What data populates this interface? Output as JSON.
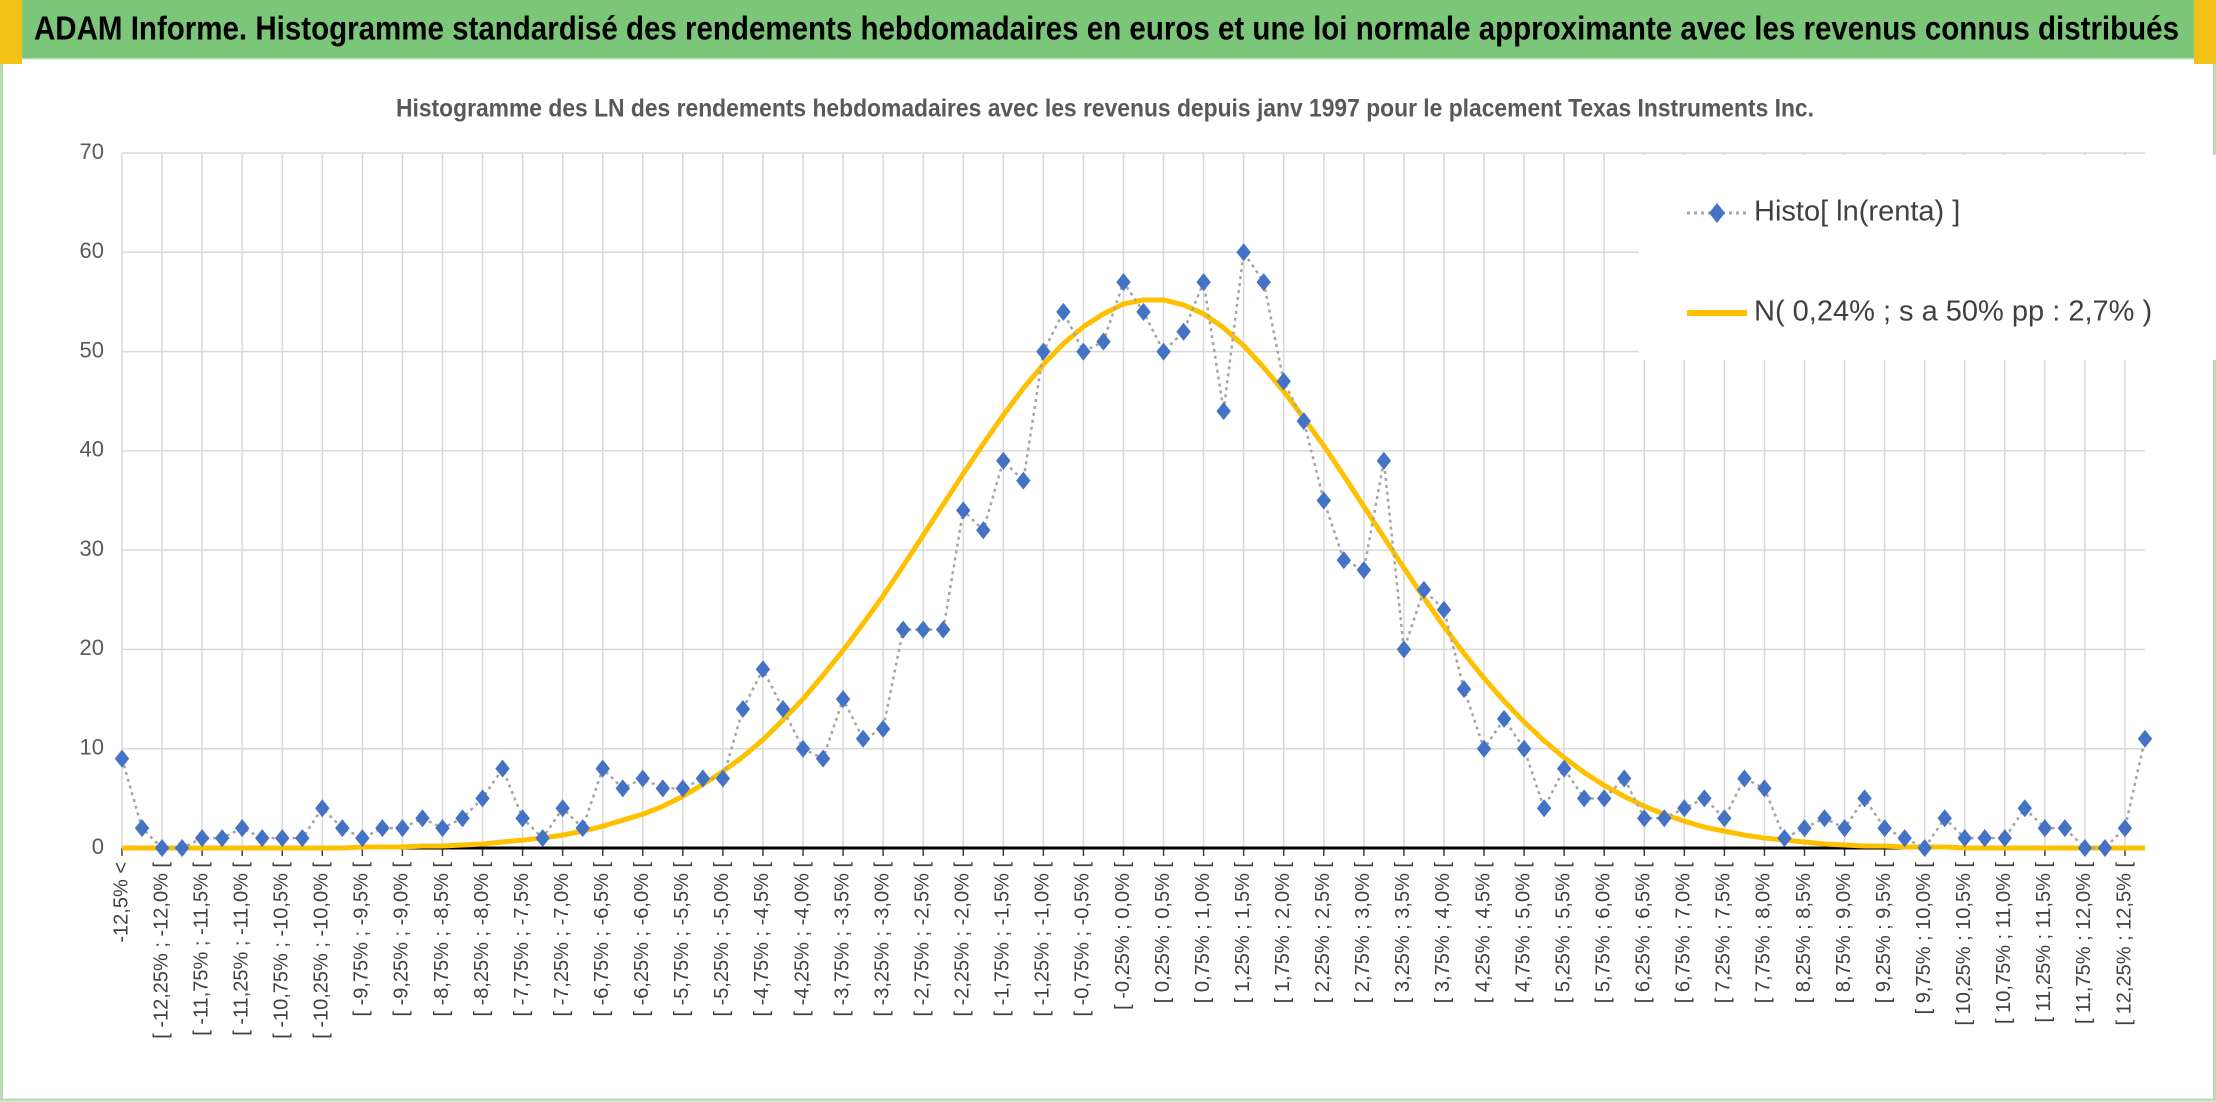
{
  "header": {
    "title": "ADAM Informe. Histogramme standardisé des rendements hebdomadaires en euros et une loi normale approximante avec les revenus connus distribués"
  },
  "chart_data": {
    "type": "line",
    "title": "Histogramme des LN des rendements hebdomadaires avec les revenus depuis janv 1997 pour le placement Texas Instruments Inc.",
    "categories": [
      "-12,5% <",
      null,
      "[ -12,25% ; -12,0% [",
      null,
      "[ -11,75% ; -11,5% [",
      null,
      "[ -11,25% ; -11,0% [",
      null,
      "[ -10,75% ; -10,5% [",
      null,
      "[ -10,25% ; -10,0% [",
      null,
      "[ -9,75% ; -9,5% [",
      null,
      "[ -9,25% ; -9,0% [",
      null,
      "[ -8,75% ; -8,5% [",
      null,
      "[ -8,25% ; -8,0% [",
      null,
      "[ -7,75% ; -7,5% [",
      null,
      "[ -7,25% ; -7,0% [",
      null,
      "[ -6,75% ; -6,5% [",
      null,
      "[ -6,25% ; -6,0% [",
      null,
      "[ -5,75% ; -5,5% [",
      null,
      "[ -5,25% ; -5,0% [",
      null,
      "[ -4,75% ; -4,5% [",
      null,
      "[ -4,25% ; -4,0% [",
      null,
      "[ -3,75% ; -3,5% [",
      null,
      "[ -3,25% ; -3,0% [",
      null,
      "[ -2,75% ; -2,5% [",
      null,
      "[ -2,25% ; -2,0% [",
      null,
      "[ -1,75% ; -1,5% [",
      null,
      "[ -1,25% ; -1,0% [",
      null,
      "[ -0,75% ; -0,5% [",
      null,
      "[ -0,25% ; 0,0% [",
      null,
      "[ 0,25% ; 0,5% [",
      null,
      "[ 0,75% ; 1,0% [",
      null,
      "[ 1,25% ; 1,5% [",
      null,
      "[ 1,75% ; 2,0% [",
      null,
      "[ 2,25% ; 2,5% [",
      null,
      "[ 2,75% ; 3,0% [",
      null,
      "[ 3,25% ; 3,5% [",
      null,
      "[ 3,75% ; 4,0% [",
      null,
      "[ 4,25% ; 4,5% [",
      null,
      "[ 4,75% ; 5,0% [",
      null,
      "[ 5,25% ; 5,5% [",
      null,
      "[ 5,75% ; 6,0% [",
      null,
      "[ 6,25% ; 6,5% [",
      null,
      "[ 6,75% ; 7,0% [",
      null,
      "[ 7,25% ; 7,5% [",
      null,
      "[ 7,75% ; 8,0% [",
      null,
      "[ 8,25% ; 8,5% [",
      null,
      "[ 8,75% ; 9,0% [",
      null,
      "[ 9,25% ; 9,5% [",
      null,
      "[ 9,75% ; 10,0% [",
      null,
      "[ 10,25% ; 10,5% [",
      null,
      "[ 10,75% ; 11,0% [",
      null,
      "[ 11,25% ; 11,5% [",
      null,
      "[ 11,75% ; 12,0% [",
      null,
      "[ 12,25% ; 12,5% [",
      null
    ],
    "series": [
      {
        "name": "Histo[ ln(renta) ]",
        "color": "#4472c4",
        "line_color": "#a5a5a5",
        "marker": "diamond",
        "dashed": true,
        "values": [
          9,
          2,
          0,
          0,
          1,
          1,
          2,
          1,
          1,
          1,
          4,
          2,
          1,
          2,
          2,
          3,
          2,
          3,
          5,
          8,
          3,
          1,
          4,
          2,
          8,
          6,
          7,
          6,
          6,
          7,
          7,
          14,
          18,
          14,
          10,
          9,
          15,
          11,
          12,
          22,
          22,
          22,
          34,
          32,
          39,
          37,
          50,
          54,
          50,
          51,
          57,
          54,
          50,
          52,
          57,
          44,
          60,
          57,
          47,
          43,
          35,
          29,
          28,
          39,
          20,
          26,
          24,
          16,
          10,
          13,
          10,
          4,
          8,
          5,
          5,
          7,
          3,
          3,
          4,
          5,
          3,
          7,
          6,
          1,
          2,
          3,
          2,
          5,
          2,
          1,
          0,
          3,
          1,
          1,
          1,
          4,
          2,
          2,
          0,
          0,
          2,
          11
        ]
      },
      {
        "name": "N( 0,24% ; s a 50% pp : 2,7% )",
        "color": "#ffc000",
        "values": [
          0,
          0,
          0,
          0,
          0,
          0,
          0,
          0,
          0,
          0,
          0,
          0,
          0.1,
          0.1,
          0.1,
          0.2,
          0.2,
          0.3,
          0.4,
          0.6,
          0.8,
          1.0,
          1.3,
          1.7,
          2.2,
          2.8,
          3.4,
          4.2,
          5.2,
          6.4,
          7.7,
          9.2,
          10.9,
          12.9,
          15.0,
          17.4,
          19.9,
          22.6,
          25.4,
          28.4,
          31.5,
          34.6,
          37.7,
          40.7,
          43.6,
          46.3,
          48.7,
          50.8,
          52.5,
          53.8,
          54.8,
          55.2,
          55.2,
          54.7,
          53.8,
          52.4,
          50.6,
          48.4,
          46.0,
          43.3,
          40.5,
          37.5,
          34.4,
          31.3,
          28.2,
          25.2,
          22.3,
          19.6,
          17.1,
          14.8,
          12.7,
          10.8,
          9.1,
          7.6,
          6.3,
          5.2,
          4.2,
          3.4,
          2.7,
          2.1,
          1.7,
          1.3,
          1.0,
          0.8,
          0.6,
          0.4,
          0.3,
          0.2,
          0.2,
          0.1,
          0.1,
          0.1,
          0,
          0,
          0,
          0,
          0,
          0,
          0,
          0,
          0,
          0
        ]
      }
    ],
    "ylim": [
      0,
      70
    ],
    "yticks": [
      0,
      10,
      20,
      30,
      40,
      50,
      60,
      70
    ],
    "grid": true,
    "legend": "top-right"
  }
}
